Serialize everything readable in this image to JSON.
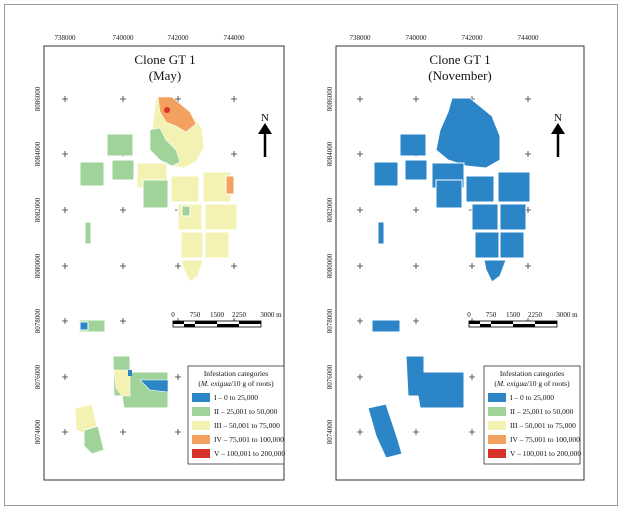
{
  "colors": {
    "cat1": "#2b85c6",
    "cat2": "#9fd39a",
    "cat3": "#f3f2b2",
    "cat4": "#f2a15e",
    "cat5": "#d7332b"
  },
  "x_ticks": [
    "738000",
    "740000",
    "742000",
    "744000"
  ],
  "y_ticks": [
    "8086000",
    "8084000",
    "8082000",
    "8080000",
    "8078000",
    "8076000",
    "8074000"
  ],
  "maps": [
    {
      "title": "Clone GT 1",
      "subtitle": "(May)"
    },
    {
      "title": "Clone GT 1",
      "subtitle": "(November)"
    }
  ],
  "north_label": "N",
  "scale_labels": [
    "0",
    "750",
    "1500",
    "2250",
    "3000 m"
  ],
  "legend": {
    "title": "Infestation categories",
    "subtitle_italic": "M. exigua",
    "subtitle_rest": "/10 g of roots)",
    "items": [
      {
        "label": "I – 0 to 25,000",
        "color_key": "cat1"
      },
      {
        "label": "II – 25,001 to 50,000",
        "color_key": "cat2"
      },
      {
        "label": "III – 50,001 to 75,000",
        "color_key": "cat3"
      },
      {
        "label": "IV – 75,001 to 100,000",
        "color_key": "cat4"
      },
      {
        "label": "V – 100,001 to 200,000",
        "color_key": "cat5"
      }
    ]
  }
}
